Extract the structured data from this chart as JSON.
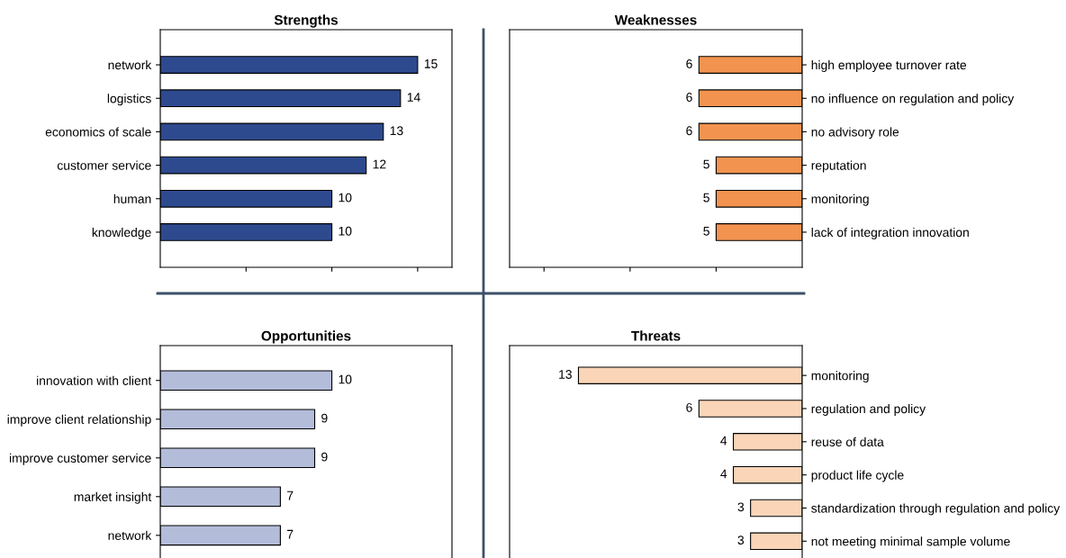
{
  "chart_data": [
    {
      "type": "bar",
      "orientation": "horizontal",
      "title": "Strengths",
      "categories": [
        "network",
        "logistics",
        "economics of scale",
        "customer service",
        "human",
        "knowledge"
      ],
      "values": [
        15,
        14,
        13,
        12,
        10,
        10
      ],
      "color": "#2e4a8f",
      "xlim": [
        0,
        17
      ],
      "xticks": [
        {
          "value": 5,
          "label": null
        },
        {
          "value": 10,
          "label": null
        },
        {
          "value": 15,
          "label": null
        }
      ],
      "data_labels": true,
      "tick_labels": "y"
    },
    {
      "type": "bar",
      "orientation": "horizontal",
      "title": "Weaknesses",
      "categories": [
        "high employee turnover rate",
        "no influence on regulation and policy",
        "no advisory role",
        "reputation",
        "monitoring",
        "lack of integration innovation"
      ],
      "values": [
        6,
        6,
        6,
        5,
        5,
        5
      ],
      "color": "#f39350",
      "xlim": [
        17,
        0
      ],
      "xticks": [
        {
          "value": 5,
          "label": null
        },
        {
          "value": 10,
          "label": null
        },
        {
          "value": 15,
          "label": null
        }
      ],
      "data_labels": true,
      "tick_labels": "y"
    },
    {
      "type": "bar",
      "orientation": "horizontal",
      "title": "Opportunities",
      "categories": [
        "innovation with client",
        "improve client relationship",
        "improve customer service",
        "market insight",
        "network"
      ],
      "values": [
        10,
        9,
        9,
        7,
        7
      ],
      "color": "#b3bcd9",
      "xlim": [
        0,
        17
      ],
      "data_labels": true,
      "tick_labels": "y"
    },
    {
      "type": "bar",
      "orientation": "horizontal",
      "title": "Threats",
      "categories": [
        "monitoring",
        "regulation and policy",
        "reuse of data",
        "product life cycle",
        "standardization through regulation and policy",
        "not meeting minimal sample volume"
      ],
      "values": [
        13,
        6,
        4,
        4,
        3,
        3
      ],
      "color": "#fad5b8",
      "xlim": [
        17,
        0
      ],
      "data_labels": true,
      "tick_labels": "y"
    }
  ]
}
